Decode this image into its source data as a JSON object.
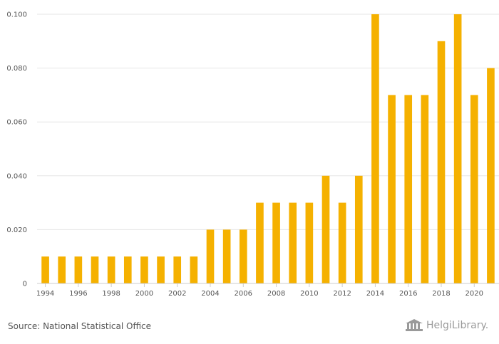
{
  "chart_data": {
    "type": "bar",
    "categories": [
      "1994",
      "1995",
      "1996",
      "1997",
      "1998",
      "1999",
      "2000",
      "2001",
      "2002",
      "2003",
      "2004",
      "2005",
      "2006",
      "2007",
      "2008",
      "2009",
      "2010",
      "2011",
      "2012",
      "2013",
      "2014",
      "2015",
      "2016",
      "2017",
      "2018",
      "2019",
      "2020",
      "2021"
    ],
    "values": [
      0.01,
      0.01,
      0.01,
      0.01,
      0.01,
      0.01,
      0.01,
      0.01,
      0.01,
      0.01,
      0.02,
      0.02,
      0.02,
      0.03,
      0.03,
      0.03,
      0.03,
      0.04,
      0.03,
      0.04,
      0.1,
      0.07,
      0.07,
      0.07,
      0.09,
      0.1,
      0.07,
      0.08
    ],
    "x_tick_labels": [
      "1994",
      "1996",
      "1998",
      "2000",
      "2002",
      "2004",
      "2006",
      "2008",
      "2010",
      "2012",
      "2014",
      "2016",
      "2018",
      "2020"
    ],
    "y_ticks": [
      0,
      0.02,
      0.04,
      0.06,
      0.08,
      0.1
    ],
    "y_tick_labels": [
      "0",
      "0.020",
      "0.040",
      "0.060",
      "0.080",
      "0.100"
    ],
    "ylim": [
      0,
      0.1
    ],
    "title": "",
    "xlabel": "",
    "ylabel": "",
    "bar_color": "#f5b100",
    "grid": true
  },
  "footer": {
    "source": "Source: National Statistical Office",
    "logo_word1": "Helgi",
    "logo_word2": "Library."
  }
}
